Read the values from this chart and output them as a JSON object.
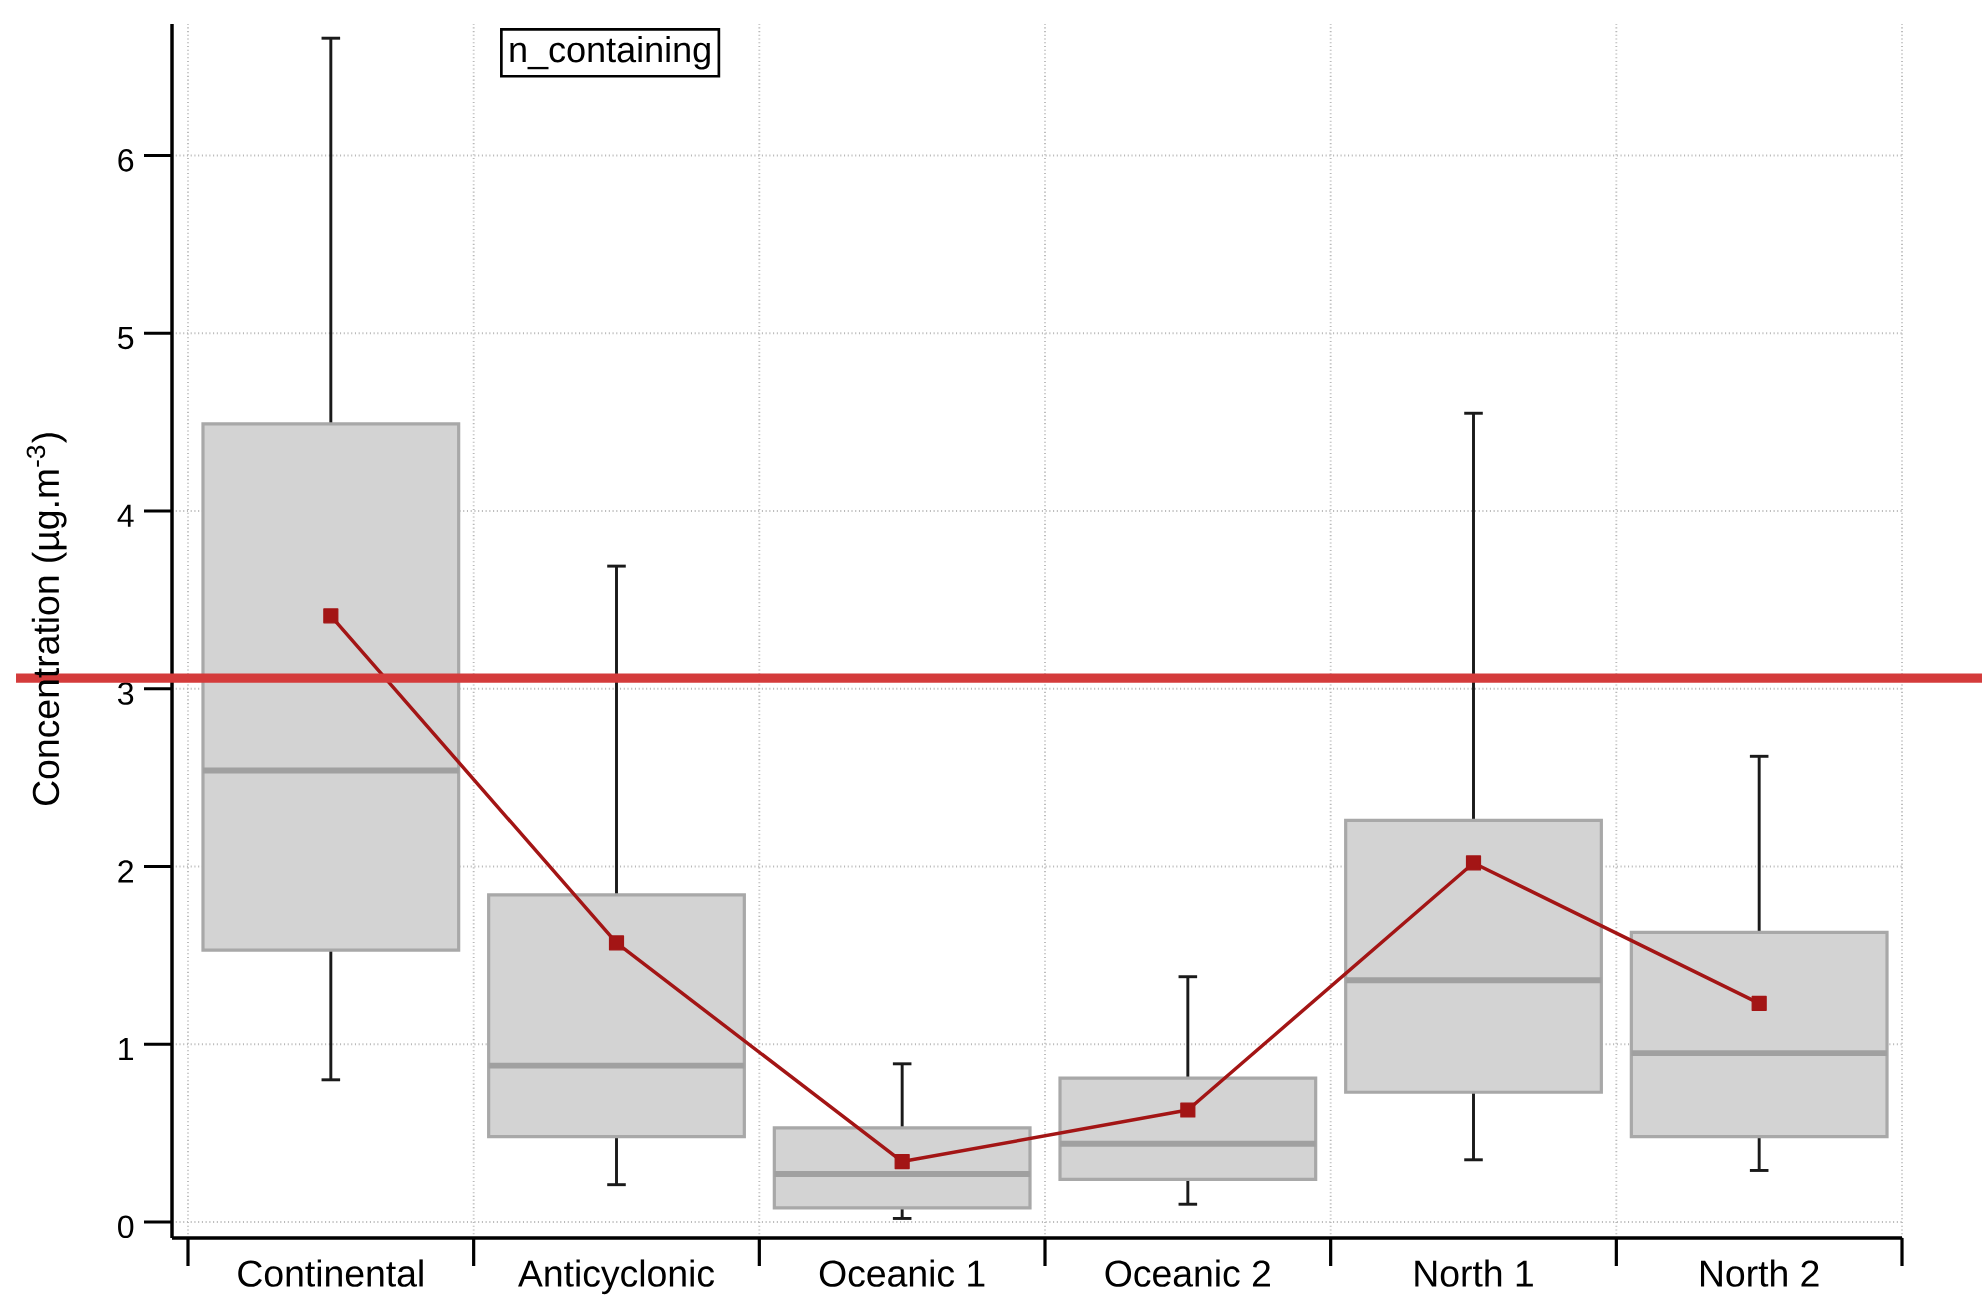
{
  "chart_data": {
    "type": "box",
    "title": "n_containing",
    "ylabel": "Concentration (µg.m$^{-3}$)",
    "categories": [
      "Continental",
      "Anticyclonic",
      "Oceanic 1",
      "Oceanic 2",
      "North 1",
      "North 2"
    ],
    "ylim": [
      -0.09,
      6.74
    ],
    "yticks": [
      0,
      1,
      2,
      3,
      4,
      5,
      6
    ],
    "grid": true,
    "series": [
      {
        "type": "box",
        "color": "#d3d3d3",
        "boxes": [
          {
            "low": 0.8,
            "q1": 1.53,
            "median": 2.54,
            "q3": 4.49,
            "high": 6.66
          },
          {
            "low": 0.21,
            "q1": 0.48,
            "median": 0.88,
            "q3": 1.84,
            "high": 3.69
          },
          {
            "low": 0.02,
            "q1": 0.08,
            "median": 0.27,
            "q3": 0.53,
            "high": 0.89
          },
          {
            "low": 0.1,
            "q1": 0.24,
            "median": 0.44,
            "q3": 0.81,
            "high": 1.38
          },
          {
            "low": 0.35,
            "q1": 0.73,
            "median": 1.36,
            "q3": 2.26,
            "high": 4.55
          },
          {
            "low": 0.29,
            "q1": 0.48,
            "median": 0.95,
            "q3": 1.63,
            "high": 2.62
          }
        ]
      },
      {
        "type": "line",
        "color": "#a31515",
        "marker": "square",
        "values": [
          3.41,
          1.57,
          0.34,
          0.63,
          2.02,
          1.23
        ]
      }
    ],
    "ref_lines": [
      {
        "axis": "y",
        "value": 3.06,
        "color": "#d43b3b"
      }
    ]
  }
}
